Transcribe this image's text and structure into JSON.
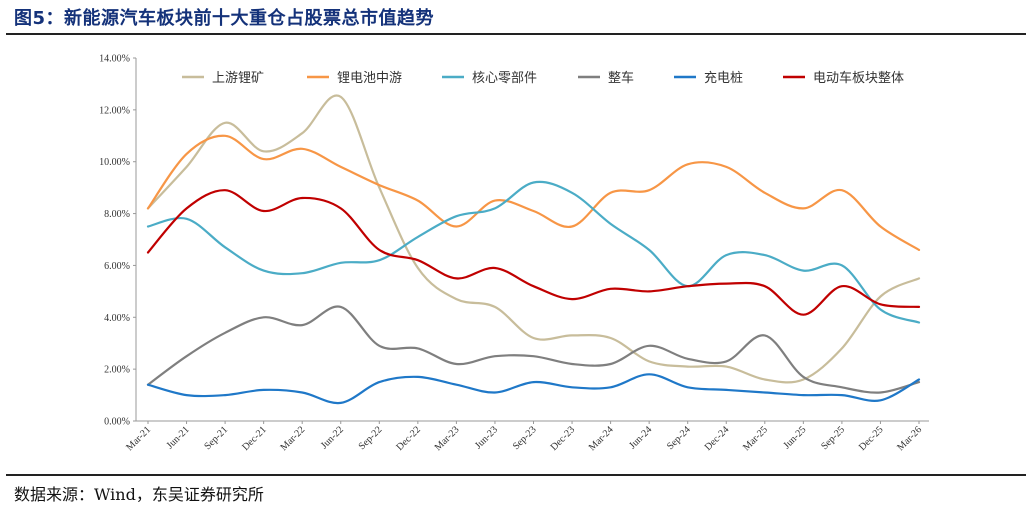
{
  "figure": {
    "title": "图5：新能源汽车板块前十大重仓占股票总市值趋势",
    "source": "数据来源：Wind，东吴证券研究所"
  },
  "chart_data": {
    "type": "line",
    "title": "图5：新能源汽车板块前十大重仓占股票总市值趋势",
    "xlabel": "",
    "ylabel": "",
    "ylim": [
      0,
      0.14
    ],
    "yticks": [
      "0.00%",
      "2.00%",
      "4.00%",
      "6.00%",
      "8.00%",
      "10.00%",
      "12.00%",
      "14.00%"
    ],
    "legend_position": "top",
    "categories": [
      "Mar-21",
      "Jun-21",
      "Sep-21",
      "Dec-21",
      "Mar-22",
      "Jun-22",
      "Sep-22",
      "Dec-22",
      "Mar-23",
      "Jun-23",
      "Sep-23",
      "Dec-23",
      "Mar-24",
      "Jun-24",
      "Sep-24",
      "Dec-24",
      "Mar-25",
      "Jun-25",
      "Sep-25",
      "Dec-25",
      "Mar-26"
    ],
    "series": [
      {
        "name": "上游锂矿",
        "color": "#c8bd9b",
        "values": [
          0.082,
          0.098,
          0.115,
          0.104,
          0.111,
          0.125,
          0.09,
          0.059,
          0.047,
          0.044,
          0.032,
          0.033,
          0.032,
          0.023,
          0.021,
          0.021,
          0.016,
          0.016,
          0.028,
          0.048,
          0.055
        ]
      },
      {
        "name": "锂电池中游",
        "color": "#f79646",
        "values": [
          0.082,
          0.103,
          0.11,
          0.101,
          0.105,
          0.098,
          0.091,
          0.085,
          0.075,
          0.085,
          0.081,
          0.075,
          0.088,
          0.089,
          0.099,
          0.098,
          0.088,
          0.082,
          0.089,
          0.075,
          0.066
        ]
      },
      {
        "name": "核心零部件",
        "color": "#4bacc6",
        "values": [
          0.075,
          0.078,
          0.067,
          0.058,
          0.057,
          0.061,
          0.062,
          0.071,
          0.079,
          0.082,
          0.092,
          0.088,
          0.076,
          0.066,
          0.052,
          0.064,
          0.064,
          0.058,
          0.06,
          0.043,
          0.038
        ]
      },
      {
        "name": "整车",
        "color": "#7f7f7f",
        "values": [
          0.014,
          0.025,
          0.034,
          0.04,
          0.037,
          0.044,
          0.029,
          0.028,
          0.022,
          0.025,
          0.025,
          0.022,
          0.022,
          0.029,
          0.024,
          0.023,
          0.033,
          0.017,
          0.013,
          0.011,
          0.015
        ]
      },
      {
        "name": "充电桩",
        "color": "#1f78c8",
        "values": [
          0.014,
          0.01,
          0.01,
          0.012,
          0.011,
          0.007,
          0.015,
          0.017,
          0.014,
          0.011,
          0.015,
          0.013,
          0.013,
          0.018,
          0.013,
          0.012,
          0.011,
          0.01,
          0.01,
          0.008,
          0.016
        ]
      },
      {
        "name": "电动车板块整体",
        "color": "#c00000",
        "values": [
          0.065,
          0.082,
          0.089,
          0.081,
          0.086,
          0.082,
          0.066,
          0.062,
          0.055,
          0.059,
          0.052,
          0.047,
          0.051,
          0.05,
          0.052,
          0.053,
          0.052,
          0.041,
          0.052,
          0.045,
          0.044
        ]
      }
    ]
  }
}
